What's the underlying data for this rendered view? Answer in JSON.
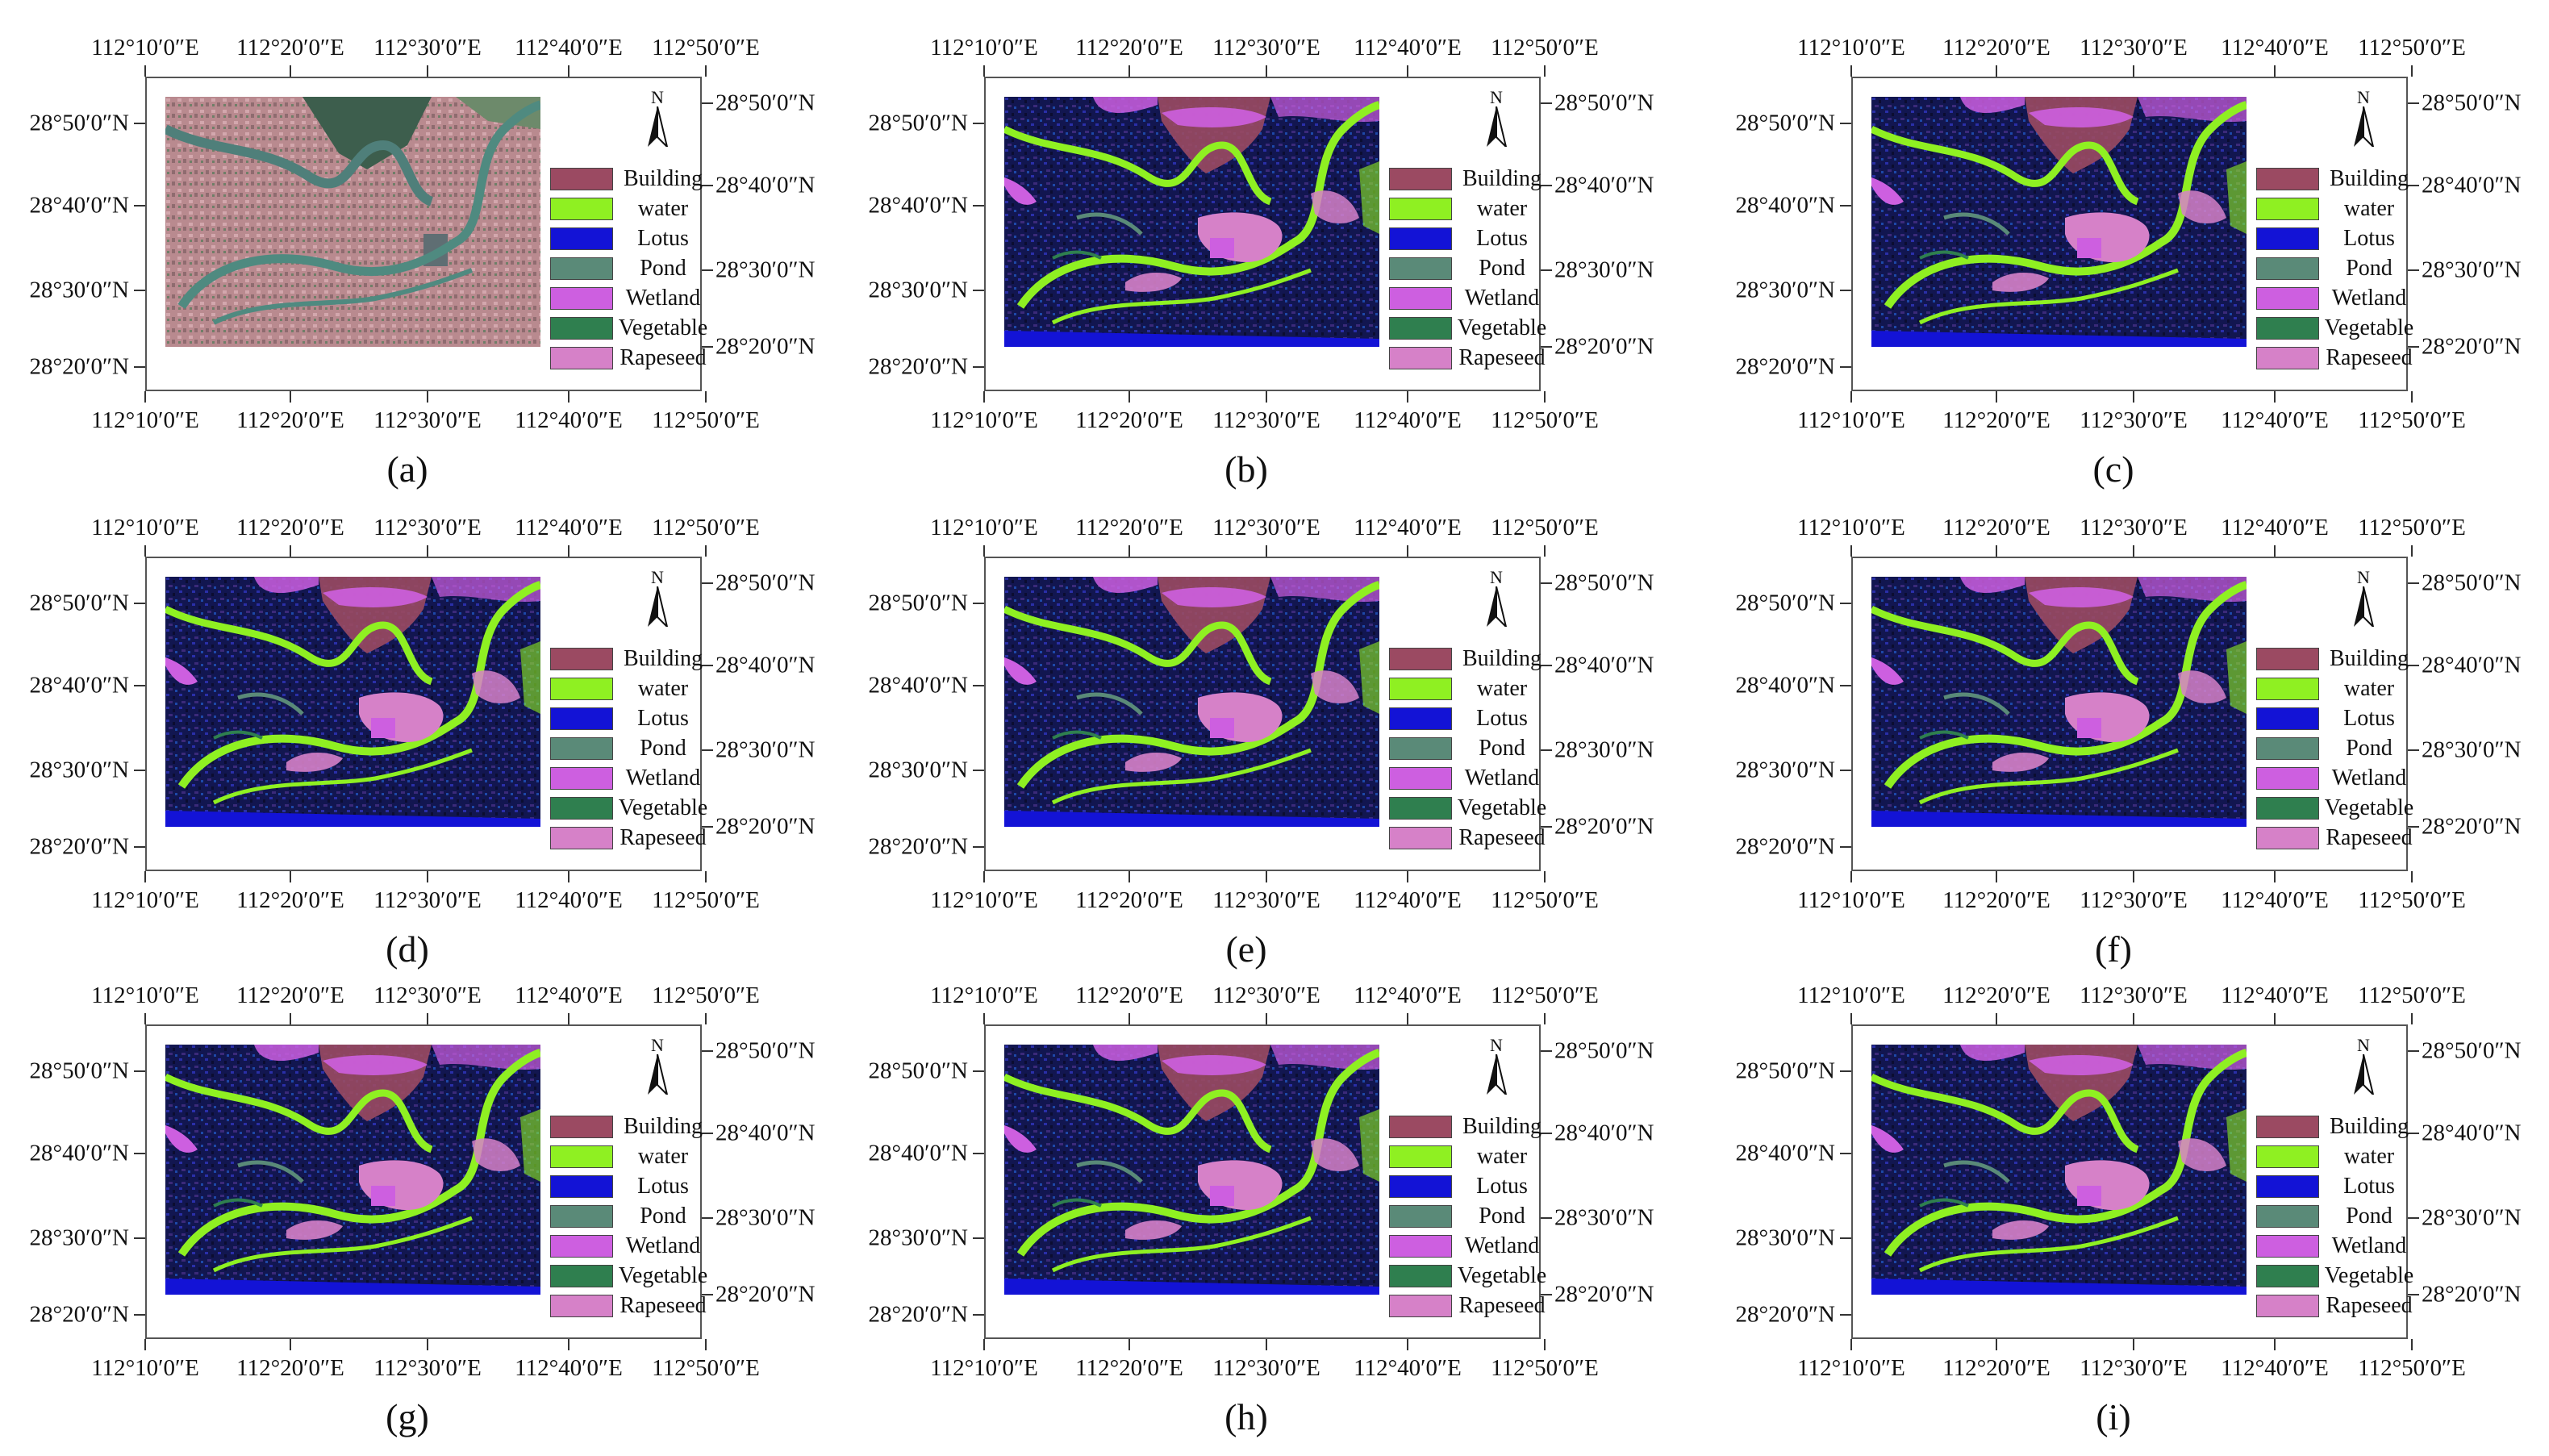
{
  "axes": {
    "top_ticks": [
      "112°10′0″E",
      "112°20′0″E",
      "112°30′0″E",
      "112°40′0″E",
      "112°50′0″E"
    ],
    "bottom_ticks": [
      "112°10′0″E",
      "112°20′0″E",
      "112°30′0″E",
      "112°40′0″E",
      "112°50′0″E"
    ],
    "left_ticks": [
      "28°50′0″N",
      "28°40′0″N",
      "28°30′0″N",
      "28°20′0″N"
    ],
    "right_ticks": [
      "28°50′0″N",
      "28°40′0″N",
      "28°30′0″N",
      "28°20′0″N"
    ]
  },
  "north_label": "N",
  "legend": [
    {
      "label": "Building",
      "color": "#9b4a62"
    },
    {
      "label": "water",
      "color": "#8ff022"
    },
    {
      "label": "Lotus",
      "color": "#1313d6"
    },
    {
      "label": "Pond",
      "color": "#5a8a78"
    },
    {
      "label": "Wetland",
      "color": "#cd5fe0"
    },
    {
      "label": "Vegetable",
      "color": "#2f7f4f"
    },
    {
      "label": "Rapeseed",
      "color": "#d681c8"
    }
  ],
  "panels": [
    {
      "caption": "(a)",
      "kind": "satellite"
    },
    {
      "caption": "(b)",
      "kind": "classified"
    },
    {
      "caption": "(c)",
      "kind": "classified"
    },
    {
      "caption": "(d)",
      "kind": "classified"
    },
    {
      "caption": "(e)",
      "kind": "classified"
    },
    {
      "caption": "(f)",
      "kind": "classified"
    },
    {
      "caption": "(g)",
      "kind": "classified"
    },
    {
      "caption": "(h)",
      "kind": "classified"
    },
    {
      "caption": "(i)",
      "kind": "classified"
    }
  ]
}
